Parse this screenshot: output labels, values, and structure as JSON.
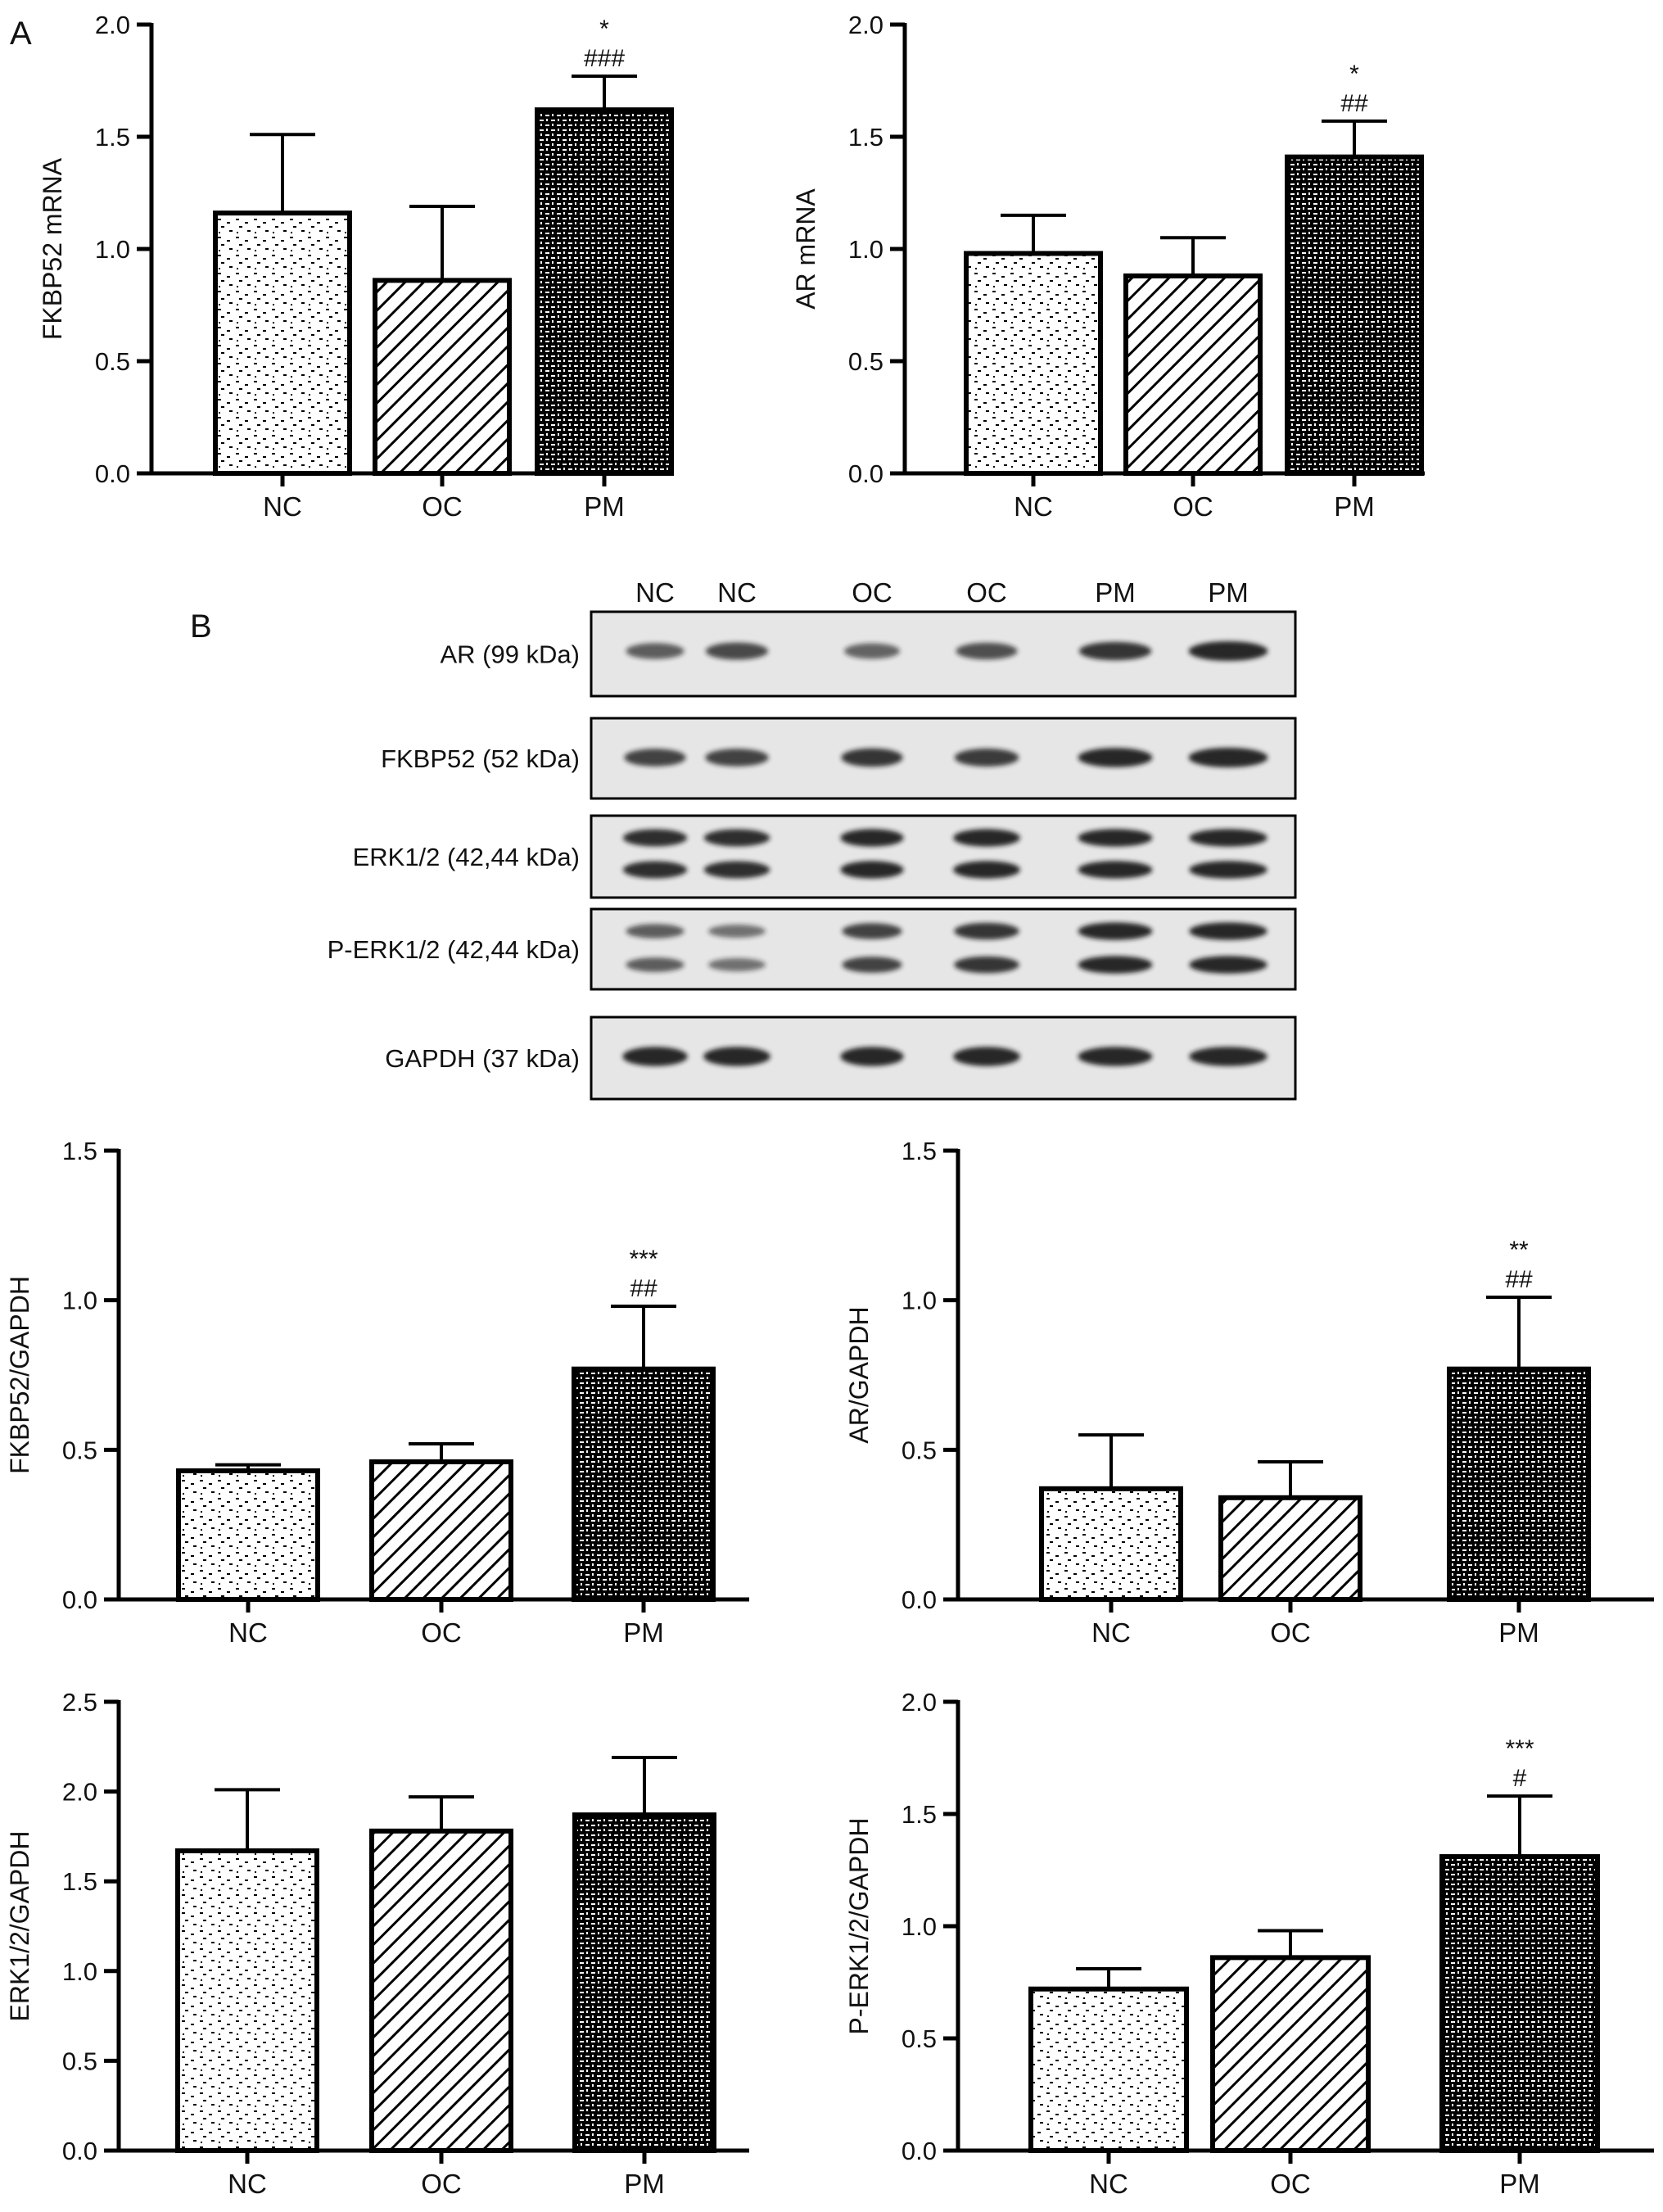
{
  "panel_labels": {
    "a": "A",
    "b": "B"
  },
  "colors": {
    "ink": "#000000",
    "paper": "#ffffff",
    "blot_bg": "#e6e6e6",
    "band": "#1a1a1a"
  },
  "blot": {
    "lanes": [
      "NC",
      "NC",
      "OC",
      "OC",
      "PM",
      "PM"
    ],
    "rows": [
      {
        "label": "AR (99 kDa)",
        "bands": [
          0.55,
          0.7,
          0.5,
          0.65,
          0.85,
          1.0
        ],
        "doublet": false
      },
      {
        "label": "FKBP52 (52 kDa)",
        "bands": [
          0.75,
          0.75,
          0.85,
          0.8,
          0.95,
          1.0
        ],
        "doublet": false
      },
      {
        "label": "ERK1/2 (42,44 kDa)",
        "bands": [
          0.9,
          0.9,
          0.95,
          0.95,
          0.95,
          0.95
        ],
        "doublet": true
      },
      {
        "label": "P-ERK1/2 (42,44 kDa)",
        "bands": [
          0.55,
          0.4,
          0.75,
          0.85,
          0.95,
          0.95
        ],
        "doublet": true
      },
      {
        "label": "GAPDH (37 kDa)",
        "bands": [
          0.95,
          0.95,
          0.95,
          0.95,
          0.95,
          0.95
        ],
        "doublet": false
      }
    ]
  },
  "chart_data": [
    {
      "type": "bar",
      "categories": [
        "NC",
        "OC",
        "PM"
      ],
      "values": [
        1.16,
        0.86,
        1.62
      ],
      "errors": [
        0.35,
        0.33,
        0.15
      ],
      "annotations": [
        [
          "",
          ""
        ],
        [
          "",
          ""
        ],
        [
          "*",
          "###"
        ]
      ],
      "ylabel": "FKBP52 mRNA",
      "ylim": [
        0,
        2.0
      ],
      "yticks": [
        "0.0",
        "0.5",
        "1.0",
        "1.5",
        "2.0"
      ],
      "patterns": [
        "dots",
        "diag",
        "dense"
      ]
    },
    {
      "type": "bar",
      "categories": [
        "NC",
        "OC",
        "PM"
      ],
      "values": [
        0.98,
        0.88,
        1.41
      ],
      "errors": [
        0.17,
        0.17,
        0.16
      ],
      "annotations": [
        [
          "",
          ""
        ],
        [
          "",
          ""
        ],
        [
          "*",
          "##"
        ]
      ],
      "ylabel": "AR mRNA",
      "ylim": [
        0,
        2.0
      ],
      "yticks": [
        "0.0",
        "0.5",
        "1.0",
        "1.5",
        "2.0"
      ],
      "patterns": [
        "dots",
        "diag",
        "dense"
      ]
    },
    {
      "type": "bar",
      "categories": [
        "NC",
        "OC",
        "PM"
      ],
      "values": [
        0.43,
        0.46,
        0.77
      ],
      "errors": [
        0.02,
        0.06,
        0.21
      ],
      "annotations": [
        [
          "",
          ""
        ],
        [
          "",
          ""
        ],
        [
          "***",
          "##"
        ]
      ],
      "ylabel": "FKBP52/GAPDH",
      "ylim": [
        0,
        1.5
      ],
      "yticks": [
        "0.0",
        "0.5",
        "1.0",
        "1.5"
      ],
      "patterns": [
        "dots",
        "diag",
        "dense"
      ]
    },
    {
      "type": "bar",
      "categories": [
        "NC",
        "OC",
        "PM"
      ],
      "values": [
        0.37,
        0.34,
        0.77
      ],
      "errors": [
        0.18,
        0.12,
        0.24
      ],
      "annotations": [
        [
          "",
          ""
        ],
        [
          "",
          ""
        ],
        [
          "**",
          "##"
        ]
      ],
      "ylabel": "AR/GAPDH",
      "ylim": [
        0,
        1.5
      ],
      "yticks": [
        "0.0",
        "0.5",
        "1.0",
        "1.5"
      ],
      "patterns": [
        "dots",
        "diag",
        "dense"
      ]
    },
    {
      "type": "bar",
      "categories": [
        "NC",
        "OC",
        "PM"
      ],
      "values": [
        1.67,
        1.78,
        1.87
      ],
      "errors": [
        0.34,
        0.19,
        0.32
      ],
      "annotations": [
        [
          "",
          ""
        ],
        [
          "",
          ""
        ],
        [
          "",
          ""
        ]
      ],
      "ylabel": "ERK1/2/GAPDH",
      "ylim": [
        0,
        2.5
      ],
      "yticks": [
        "0.0",
        "0.5",
        "1.0",
        "1.5",
        "2.0",
        "2.5"
      ],
      "patterns": [
        "dots",
        "diag",
        "dense"
      ]
    },
    {
      "type": "bar",
      "categories": [
        "NC",
        "OC",
        "PM"
      ],
      "values": [
        0.72,
        0.86,
        1.31
      ],
      "errors": [
        0.09,
        0.12,
        0.27
      ],
      "annotations": [
        [
          "",
          ""
        ],
        [
          "",
          ""
        ],
        [
          "***",
          "#"
        ]
      ],
      "ylabel": "P-ERK1/2/GAPDH",
      "ylim": [
        0,
        2.0
      ],
      "yticks": [
        "0.0",
        "0.5",
        "1.0",
        "1.5",
        "2.0"
      ],
      "patterns": [
        "dots",
        "diag",
        "dense"
      ]
    }
  ]
}
